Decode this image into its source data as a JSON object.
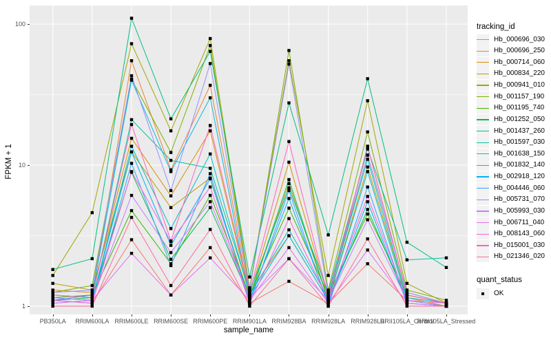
{
  "chart_data": {
    "type": "line",
    "title": "",
    "xlabel": "sample_name",
    "ylabel": "FPKM + 1",
    "y_scale": "log10",
    "ylim": [
      1,
      120
    ],
    "y_ticks": [
      1,
      10,
      100
    ],
    "y_tick_labels": [
      "1",
      "10",
      "100"
    ],
    "y_minor_breaks": [
      3.1623,
      31.623
    ],
    "grid": "on",
    "panel_bg": "#EBEBEB",
    "grid_color": "#FFFFFF",
    "tick_text_color": "#4D4D4D",
    "point_shape": "filled-square",
    "point_color": "#000000",
    "legend_title": "tracking_id",
    "legend_position": "right",
    "quant_status": {
      "title": "quant_status",
      "value": "OK"
    },
    "x_categories": [
      "PB350LA",
      "RRIM600LA",
      "RRIM600LE",
      "RRIM600SE",
      "RRIM600PE",
      "RRIM901LA",
      "RRIM928BA",
      "RRIM928LA",
      "RRIM928LB",
      "RRII105LA_Control",
      "RRII105LA_Stressed"
    ],
    "series": [
      {
        "name": "Hb_000696_030",
        "color": "#F8766D",
        "values": [
          1.1,
          1.05,
          2.96,
          1.2,
          2.6,
          1.05,
          1.5,
          1.05,
          2.0,
          1.1,
          1.0
        ]
      },
      {
        "name": "Hb_000696_250",
        "color": "#EA8331",
        "values": [
          1.2,
          1.15,
          55.0,
          9.25,
          36.8,
          1.25,
          3.16,
          1.1,
          13.6,
          1.2,
          1.05
        ]
      },
      {
        "name": "Hb_000714_060",
        "color": "#D89000",
        "values": [
          1.3,
          1.25,
          15.5,
          6.05,
          17.5,
          1.2,
          10.5,
          1.15,
          11.8,
          1.25,
          1.05
        ]
      },
      {
        "name": "Hb_000834_220",
        "color": "#C09B00",
        "values": [
          1.45,
          1.3,
          12.4,
          5.0,
          8.1,
          1.15,
          7.4,
          1.1,
          9.7,
          1.15,
          1.0
        ]
      },
      {
        "name": "Hb_000941_010",
        "color": "#A3A500",
        "values": [
          1.65,
          4.6,
          72.6,
          17.5,
          79.0,
          1.35,
          55.0,
          1.65,
          28.6,
          1.45,
          1.05
        ]
      },
      {
        "name": "Hb_001157_190",
        "color": "#7CAE00",
        "values": [
          1.25,
          1.4,
          40.7,
          12.3,
          70.5,
          1.3,
          65.0,
          1.3,
          17.2,
          1.3,
          1.1
        ]
      },
      {
        "name": "Hb_001195_740",
        "color": "#39B600",
        "values": [
          1.15,
          1.2,
          4.76,
          2.0,
          6.1,
          1.2,
          4.95,
          1.2,
          4.5,
          1.2,
          1.05
        ]
      },
      {
        "name": "Hb_001252_050",
        "color": "#00BB4E",
        "values": [
          1.1,
          1.15,
          8.9,
          2.15,
          5.0,
          1.15,
          7.9,
          1.1,
          4.85,
          1.1,
          1.0
        ]
      },
      {
        "name": "Hb_001437_260",
        "color": "#00BF7D",
        "values": [
          1.82,
          2.17,
          110.0,
          21.3,
          64.0,
          1.61,
          27.6,
          3.2,
          41.0,
          2.84,
          1.88
        ]
      },
      {
        "name": "Hb_001597_030",
        "color": "#00C1A3",
        "values": [
          1.2,
          1.15,
          21.0,
          10.8,
          9.5,
          1.25,
          6.9,
          1.25,
          13.0,
          2.13,
          2.2
        ]
      },
      {
        "name": "Hb_001638_150",
        "color": "#00BFC4",
        "values": [
          1.15,
          1.1,
          13.6,
          3.55,
          12.0,
          1.2,
          3.48,
          1.15,
          11.0,
          1.15,
          1.05
        ]
      },
      {
        "name": "Hb_001832_140",
        "color": "#00BAE0",
        "values": [
          1.1,
          1.2,
          40.0,
          9.0,
          30.0,
          1.15,
          3.16,
          1.1,
          9.0,
          1.1,
          1.0
        ]
      },
      {
        "name": "Hb_002918_120",
        "color": "#00B0F6",
        "values": [
          1.05,
          1.1,
          12.4,
          2.7,
          8.0,
          1.1,
          5.8,
          1.05,
          5.5,
          1.05,
          1.0
        ]
      },
      {
        "name": "Hb_004446_060",
        "color": "#35A2FF",
        "values": [
          1.1,
          1.05,
          10.3,
          1.94,
          8.7,
          1.05,
          6.6,
          1.0,
          7.0,
          1.05,
          1.0
        ]
      },
      {
        "name": "Hb_005731_070",
        "color": "#9590FF",
        "values": [
          1.25,
          1.3,
          43.0,
          6.6,
          52.5,
          1.3,
          52.0,
          1.2,
          11.75,
          1.25,
          1.05
        ]
      },
      {
        "name": "Hb_005993_030",
        "color": "#C77CFF",
        "values": [
          1.15,
          1.1,
          6.1,
          2.4,
          5.5,
          1.15,
          2.17,
          1.1,
          4.1,
          1.1,
          1.0
        ]
      },
      {
        "name": "Hb_006711_040",
        "color": "#E76BF3",
        "values": [
          1.05,
          1.1,
          2.37,
          1.2,
          2.2,
          1.1,
          2.6,
          1.05,
          2.5,
          1.05,
          1.0
        ]
      },
      {
        "name": "Hb_008143_060",
        "color": "#FA62DB",
        "values": [
          1.1,
          1.05,
          9.0,
          2.87,
          7.0,
          1.05,
          4.18,
          1.1,
          6.0,
          1.1,
          1.05
        ]
      },
      {
        "name": "Hb_015001_030",
        "color": "#FF62BC",
        "values": [
          1.2,
          1.15,
          19.4,
          2.9,
          19.1,
          1.25,
          14.7,
          1.15,
          13.6,
          1.2,
          1.05
        ]
      },
      {
        "name": "Hb_021346_020",
        "color": "#FF6A98",
        "values": [
          1.0,
          1.0,
          4.26,
          1.4,
          3.5,
          1.0,
          2.17,
          1.0,
          3.0,
          1.0,
          1.0
        ]
      }
    ]
  }
}
